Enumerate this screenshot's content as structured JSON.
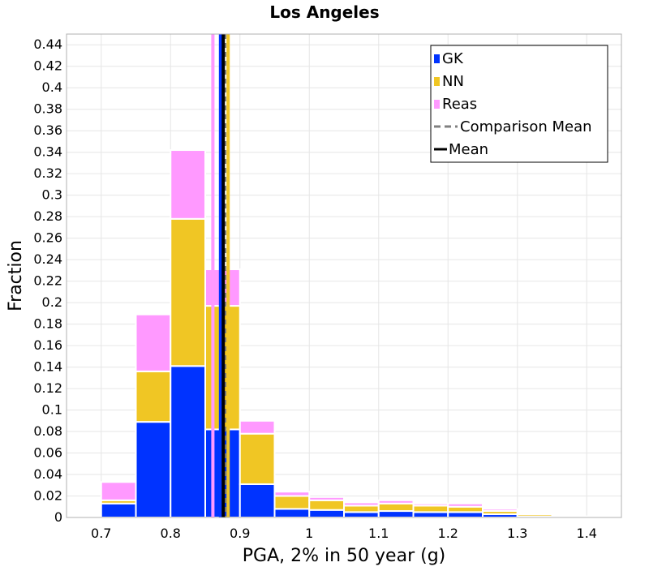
{
  "chart_data": {
    "type": "bar",
    "stacked": true,
    "title": "Los Angeles",
    "xlabel": "PGA, 2% in 50 year (g)",
    "ylabel": "Fraction",
    "xlim": [
      0.65,
      1.45
    ],
    "ylim": [
      0,
      0.45
    ],
    "grid": true,
    "legend_position": "top-right",
    "x_ticks": [
      "0.7",
      "0.8",
      "0.9",
      "1",
      "1.1",
      "1.2",
      "1.3",
      "1.4"
    ],
    "y_ticks": [
      "0",
      "0.02",
      "0.04",
      "0.06",
      "0.08",
      "0.1",
      "0.12",
      "0.14",
      "0.16",
      "0.18",
      "0.2",
      "0.22",
      "0.24",
      "0.26",
      "0.28",
      "0.3",
      "0.32",
      "0.34",
      "0.36",
      "0.38",
      "0.4",
      "0.42",
      "0.44"
    ],
    "bin_width": 0.05,
    "bin_centers": [
      0.675,
      0.725,
      0.775,
      0.825,
      0.875,
      0.925,
      0.975,
      1.025,
      1.075,
      1.125,
      1.175,
      1.225,
      1.275,
      1.325,
      1.375,
      1.425
    ],
    "series": [
      {
        "name": "GK",
        "color": "#0033ff",
        "values": [
          0.0,
          0.013,
          0.089,
          0.141,
          0.082,
          0.031,
          0.008,
          0.007,
          0.005,
          0.006,
          0.005,
          0.005,
          0.003,
          0.001,
          0.0005,
          0.0003
        ]
      },
      {
        "name": "NN",
        "color": "#f0c624",
        "values": [
          0.0,
          0.003,
          0.047,
          0.137,
          0.115,
          0.047,
          0.012,
          0.009,
          0.006,
          0.007,
          0.006,
          0.005,
          0.003,
          0.002,
          0.0003,
          0.0002
        ]
      },
      {
        "name": "Reas",
        "color": "#ff99ff",
        "values": [
          0.0,
          0.017,
          0.053,
          0.064,
          0.034,
          0.012,
          0.004,
          0.003,
          0.003,
          0.003,
          0.002,
          0.003,
          0.002,
          0.001,
          0.0002,
          0.0001
        ]
      }
    ],
    "vertical_lines": [
      {
        "name": "Reas",
        "x": 0.861,
        "color": "#ff99ff",
        "style": "solid"
      },
      {
        "name": "GK",
        "x": 0.872,
        "color": "#0033ff",
        "style": "solid"
      },
      {
        "name": "NN",
        "x": 0.883,
        "color": "#f0c624",
        "style": "solid"
      },
      {
        "name": "Comparison Mean",
        "x": 0.879,
        "color": "#808080",
        "style": "dashed"
      },
      {
        "name": "Mean",
        "x": 0.876,
        "color": "#000000",
        "style": "solid"
      }
    ],
    "legend": [
      {
        "label": "GK",
        "kind": "box",
        "color": "#0033ff"
      },
      {
        "label": "NN",
        "kind": "box",
        "color": "#f0c624"
      },
      {
        "label": "Reas",
        "kind": "box",
        "color": "#ff99ff"
      },
      {
        "label": "Comparison Mean",
        "kind": "dashed-line",
        "color": "#808080"
      },
      {
        "label": "Mean",
        "kind": "line",
        "color": "#000000"
      }
    ]
  }
}
